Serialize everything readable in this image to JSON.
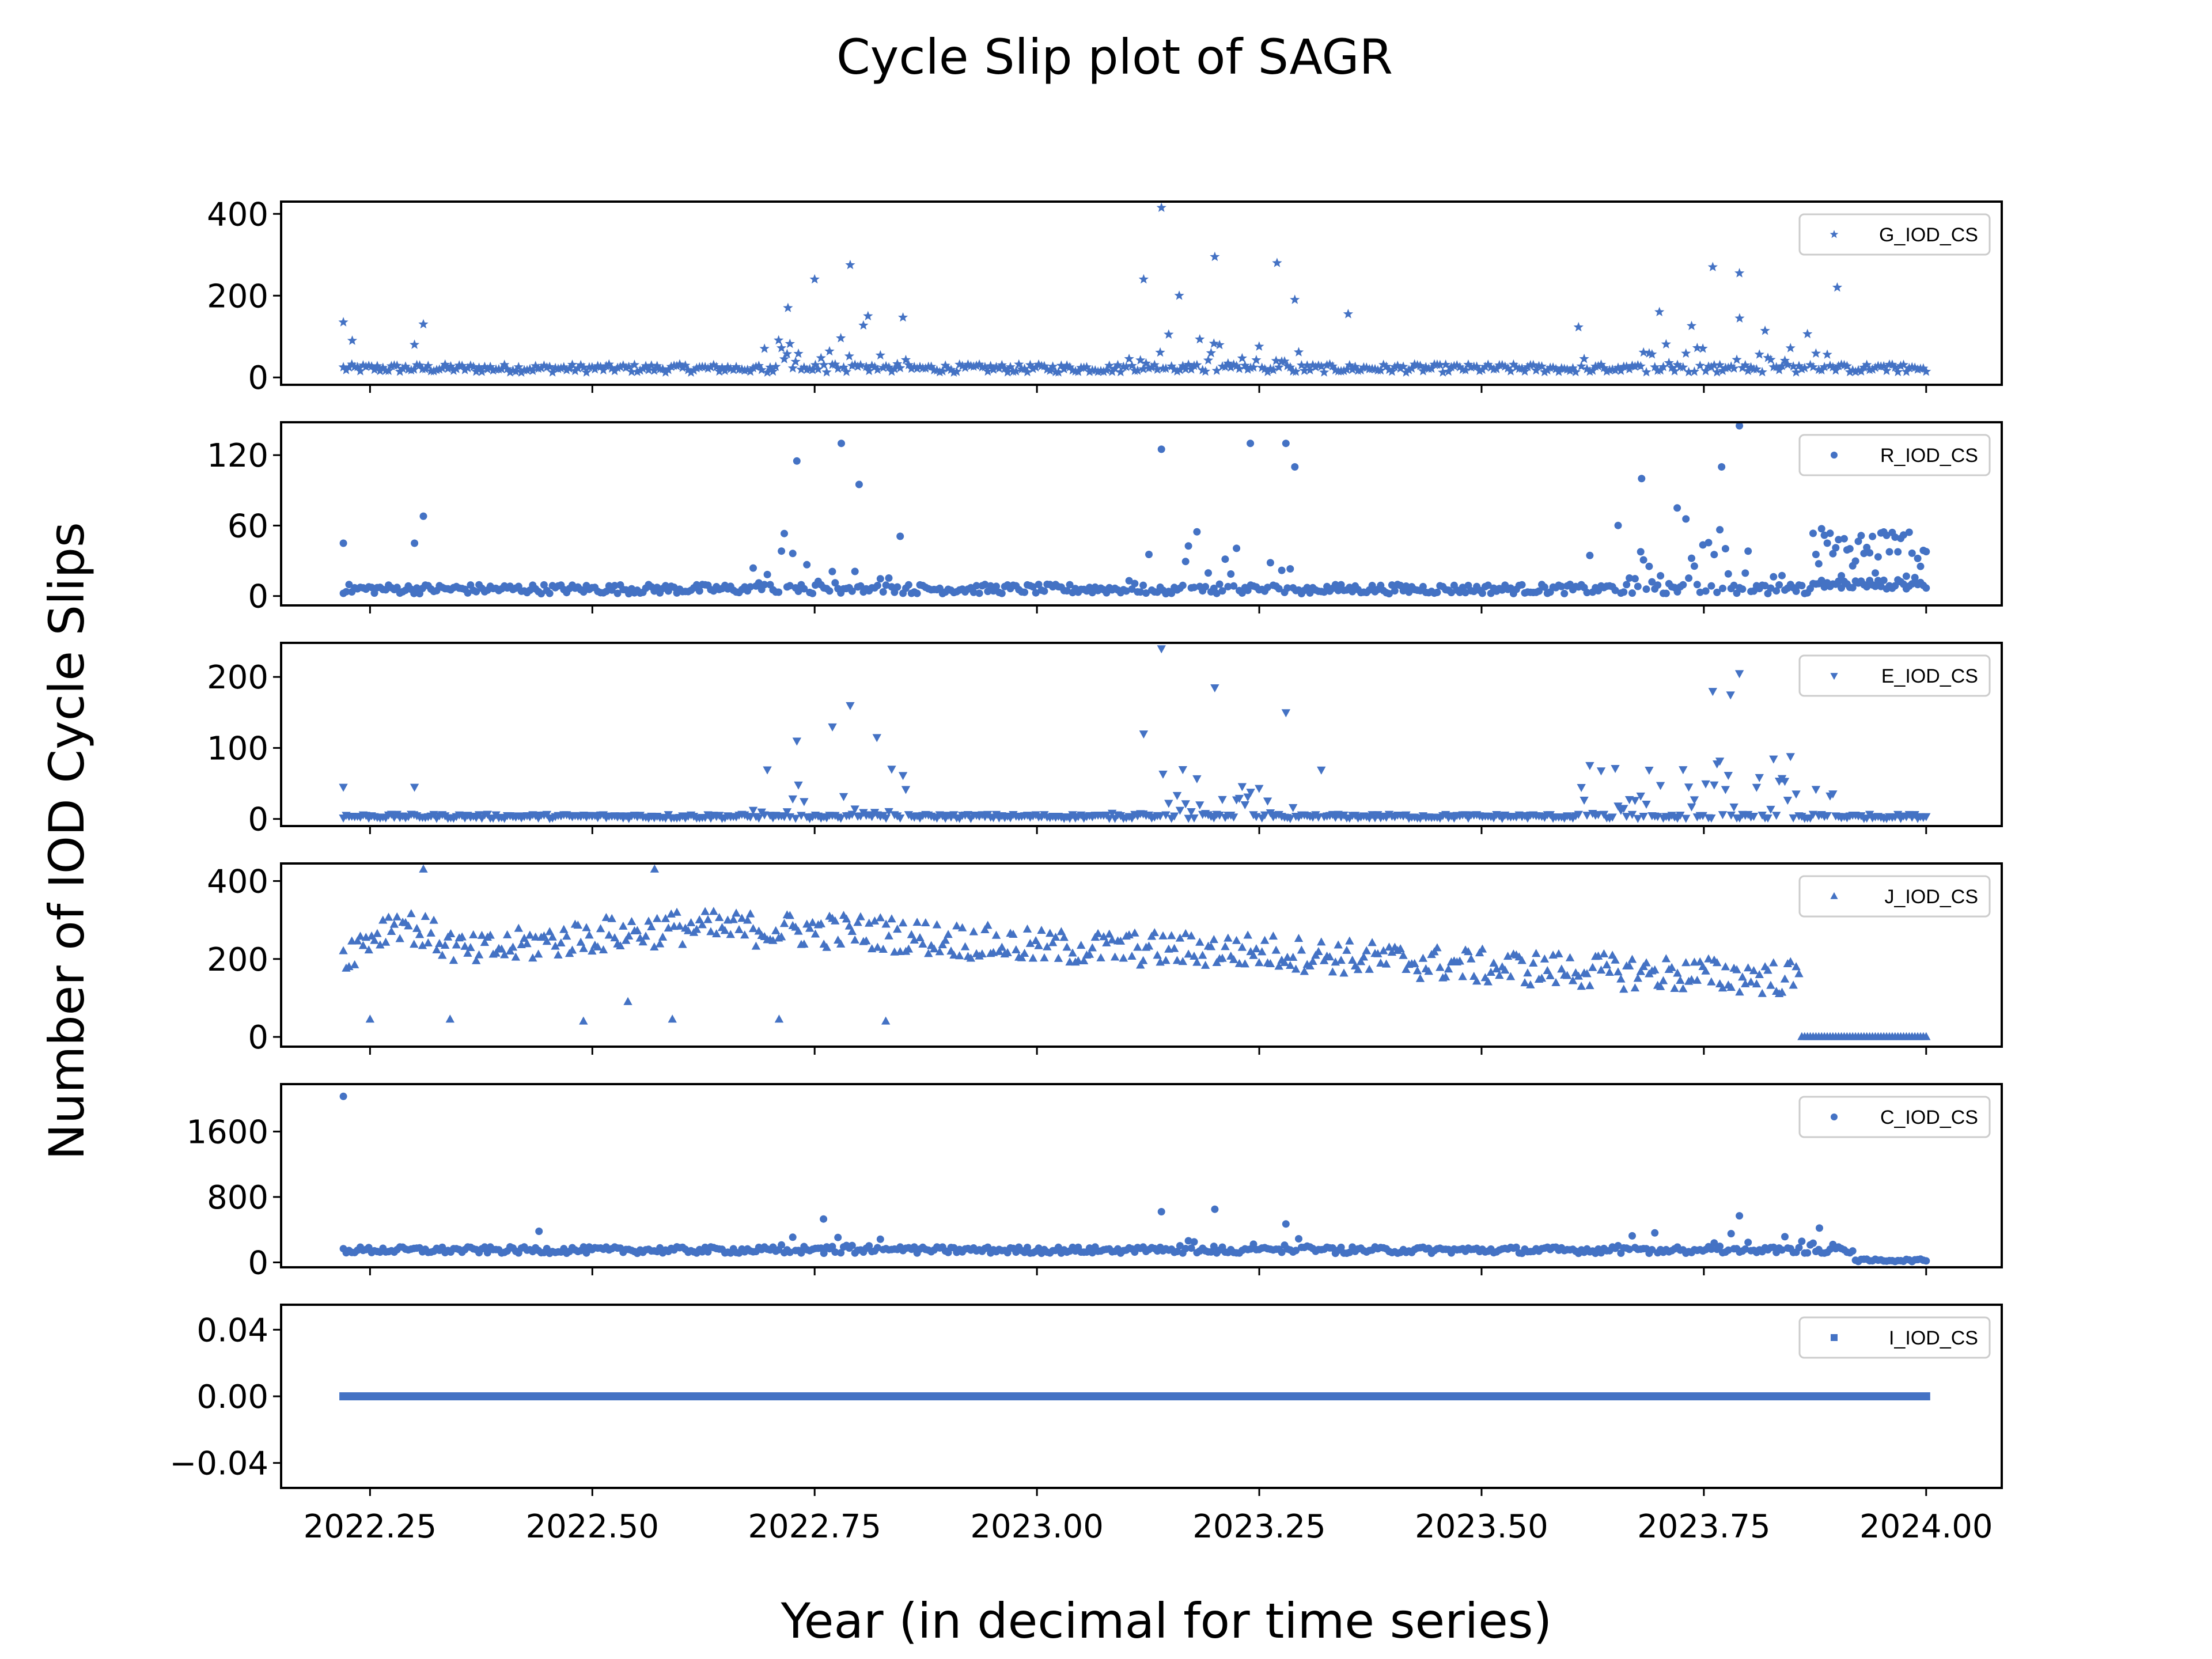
{
  "chart_data": {
    "type": "scatter",
    "title": "Cycle Slip plot of SAGR",
    "xlabel": "Year (in decimal for time series)",
    "ylabel": "Number of IOD Cycle Slips",
    "xlim": [
      2022.15,
      2024.085
    ],
    "x_ticks": [
      2022.25,
      2022.5,
      2022.75,
      2023.0,
      2023.25,
      2023.5,
      2023.75,
      2024.0
    ],
    "x_tick_labels": [
      "2022.25",
      "2022.50",
      "2022.75",
      "2023.00",
      "2023.25",
      "2023.50",
      "2023.75",
      "2024.00"
    ],
    "x_range": [
      2022.22,
      2024.0
    ],
    "grid": false,
    "legend_position": "top-right",
    "marker_color": "#4472c4",
    "subplots": [
      {
        "series": "G_IOD_CS",
        "marker": "star",
        "ylim": [
          -18,
          430
        ],
        "y_ticks": [
          0,
          200,
          400
        ],
        "y_tick_labels": [
          "0",
          "200",
          "400"
        ],
        "baseline": 22,
        "noise": 10,
        "features": [
          {
            "x": 2022.22,
            "y": 135
          },
          {
            "x": 2022.23,
            "y": 90
          },
          {
            "x": 2022.3,
            "y": 80
          },
          {
            "x": 2022.31,
            "y": 130
          },
          {
            "x": 2022.72,
            "y": 170
          },
          {
            "x": 2022.75,
            "y": 240
          },
          {
            "x": 2022.79,
            "y": 275
          },
          {
            "x": 2022.81,
            "y": 150
          },
          {
            "x": 2023.12,
            "y": 240
          },
          {
            "x": 2023.14,
            "y": 415
          },
          {
            "x": 2023.16,
            "y": 200
          },
          {
            "x": 2023.2,
            "y": 295
          },
          {
            "x": 2023.27,
            "y": 280
          },
          {
            "x": 2023.29,
            "y": 190
          },
          {
            "x": 2023.35,
            "y": 155
          },
          {
            "x": 2023.7,
            "y": 160
          },
          {
            "x": 2023.76,
            "y": 270
          },
          {
            "x": 2023.79,
            "y": 255
          },
          {
            "x": 2023.9,
            "y": 220
          }
        ],
        "bursts": [
          {
            "from": 2022.68,
            "to": 2022.86,
            "max": 180
          },
          {
            "from": 2023.1,
            "to": 2023.3,
            "max": 190
          },
          {
            "from": 2023.6,
            "to": 2023.95,
            "max": 190
          }
        ]
      },
      {
        "series": "R_IOD_CS",
        "marker": "circle",
        "ylim": [
          -8,
          148
        ],
        "y_ticks": [
          0,
          60,
          120
        ],
        "y_tick_labels": [
          "0",
          "60",
          "120"
        ],
        "baseline": 6,
        "noise": 4,
        "features": [
          {
            "x": 2022.22,
            "y": 45
          },
          {
            "x": 2022.31,
            "y": 68
          },
          {
            "x": 2022.3,
            "y": 45
          },
          {
            "x": 2022.73,
            "y": 115
          },
          {
            "x": 2022.78,
            "y": 130
          },
          {
            "x": 2022.8,
            "y": 95
          },
          {
            "x": 2023.14,
            "y": 125
          },
          {
            "x": 2023.24,
            "y": 130
          },
          {
            "x": 2023.28,
            "y": 130
          },
          {
            "x": 2023.29,
            "y": 110
          },
          {
            "x": 2023.68,
            "y": 100
          },
          {
            "x": 2023.72,
            "y": 75
          },
          {
            "x": 2023.79,
            "y": 145
          },
          {
            "x": 2023.77,
            "y": 110
          }
        ],
        "bursts": [
          {
            "from": 2022.68,
            "to": 2022.86,
            "max": 70
          },
          {
            "from": 2023.1,
            "to": 2023.3,
            "max": 75
          },
          {
            "from": 2023.62,
            "to": 2023.85,
            "max": 80
          }
        ],
        "tail": {
          "from": 2023.87,
          "to": 2024.0,
          "min": 15,
          "max": 60
        }
      },
      {
        "series": "E_IOD_CS",
        "marker": "triangle-down",
        "ylim": [
          -10,
          248
        ],
        "y_ticks": [
          0,
          100,
          200
        ],
        "y_tick_labels": [
          "0",
          "100",
          "200"
        ],
        "baseline": 4,
        "noise": 3,
        "features": [
          {
            "x": 2022.22,
            "y": 45
          },
          {
            "x": 2022.3,
            "y": 45
          },
          {
            "x": 2022.73,
            "y": 110
          },
          {
            "x": 2022.77,
            "y": 130
          },
          {
            "x": 2022.79,
            "y": 160
          },
          {
            "x": 2022.82,
            "y": 115
          },
          {
            "x": 2023.12,
            "y": 120
          },
          {
            "x": 2023.14,
            "y": 240
          },
          {
            "x": 2023.2,
            "y": 185
          },
          {
            "x": 2023.28,
            "y": 150
          },
          {
            "x": 2023.76,
            "y": 180
          },
          {
            "x": 2023.79,
            "y": 205
          },
          {
            "x": 2023.78,
            "y": 175
          }
        ],
        "bursts": [
          {
            "from": 2022.68,
            "to": 2022.86,
            "max": 90
          },
          {
            "from": 2023.08,
            "to": 2023.32,
            "max": 90
          },
          {
            "from": 2023.6,
            "to": 2023.9,
            "max": 100
          }
        ]
      },
      {
        "series": "J_IOD_CS",
        "marker": "triangle-up",
        "ylim": [
          -25,
          445
        ],
        "y_ticks": [
          0,
          200,
          400
        ],
        "y_tick_labels": [
          "0",
          "200",
          "400"
        ],
        "trend": [
          {
            "x": 2022.22,
            "y": 210
          },
          {
            "x": 2022.28,
            "y": 300
          },
          {
            "x": 2022.36,
            "y": 215
          },
          {
            "x": 2022.5,
            "y": 260
          },
          {
            "x": 2022.6,
            "y": 280
          },
          {
            "x": 2022.8,
            "y": 270
          },
          {
            "x": 2023.0,
            "y": 230
          },
          {
            "x": 2023.25,
            "y": 220
          },
          {
            "x": 2023.5,
            "y": 180
          },
          {
            "x": 2023.85,
            "y": 150
          }
        ],
        "noise": 45,
        "drop_at": 2023.86,
        "features": [
          {
            "x": 2022.31,
            "y": 430
          },
          {
            "x": 2022.57,
            "y": 430
          },
          {
            "x": 2022.25,
            "y": 45
          },
          {
            "x": 2022.34,
            "y": 45
          },
          {
            "x": 2022.49,
            "y": 40
          },
          {
            "x": 2022.54,
            "y": 90
          },
          {
            "x": 2022.59,
            "y": 45
          },
          {
            "x": 2022.71,
            "y": 45
          },
          {
            "x": 2022.83,
            "y": 40
          }
        ]
      },
      {
        "series": "C_IOD_CS",
        "marker": "circle",
        "ylim": [
          -60,
          2180
        ],
        "y_ticks": [
          0,
          800,
          1600
        ],
        "y_tick_labels": [
          "0",
          "800",
          "1600"
        ],
        "baseline": 150,
        "noise": 40,
        "drop_at": 2023.92,
        "drop_value": 10,
        "features": [
          {
            "x": 2022.22,
            "y": 2030
          },
          {
            "x": 2022.44,
            "y": 380
          },
          {
            "x": 2022.76,
            "y": 530
          },
          {
            "x": 2023.14,
            "y": 620
          },
          {
            "x": 2023.2,
            "y": 650
          },
          {
            "x": 2023.28,
            "y": 470
          },
          {
            "x": 2023.79,
            "y": 570
          },
          {
            "x": 2023.88,
            "y": 420
          }
        ],
        "bursts": [
          {
            "from": 2022.7,
            "to": 2022.86,
            "max": 350
          },
          {
            "from": 2023.1,
            "to": 2023.32,
            "max": 380
          },
          {
            "from": 2023.65,
            "to": 2023.9,
            "max": 400
          }
        ]
      },
      {
        "series": "I_IOD_CS",
        "marker": "square",
        "ylim": [
          -0.055,
          0.055
        ],
        "y_ticks": [
          -0.04,
          0.0,
          0.04
        ],
        "y_tick_labels": [
          "−0.04",
          "0.00",
          "0.04"
        ],
        "constant": 0
      }
    ]
  }
}
